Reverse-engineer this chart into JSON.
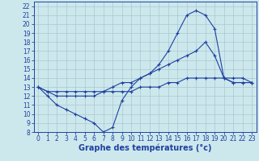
{
  "title": "Graphe des températures (°c)",
  "bg_color": "#cce8ed",
  "grid_color": "#aac8d0",
  "line_color": "#2040a0",
  "x_values": [
    0,
    1,
    2,
    3,
    4,
    5,
    6,
    7,
    8,
    9,
    10,
    11,
    12,
    13,
    14,
    15,
    16,
    17,
    18,
    19,
    20,
    21,
    22,
    23
  ],
  "line1": [
    13,
    12,
    11,
    10.5,
    10,
    9.5,
    9,
    8,
    8.5,
    11.5,
    13,
    14,
    14.5,
    15.5,
    17,
    19,
    21,
    21.5,
    21,
    19.5,
    14,
    13.5,
    13.5,
    13.5
  ],
  "line2": [
    13,
    12.5,
    12,
    12,
    12,
    12,
    12,
    12.5,
    13,
    13.5,
    13.5,
    14,
    14.5,
    15,
    15.5,
    16,
    16.5,
    17,
    18,
    16.5,
    14,
    13.5,
    13.5,
    13.5
  ],
  "line3": [
    13,
    12.5,
    12.5,
    12.5,
    12.5,
    12.5,
    12.5,
    12.5,
    12.5,
    12.5,
    12.5,
    13,
    13,
    13,
    13.5,
    13.5,
    14,
    14,
    14,
    14,
    14,
    14,
    14,
    13.5
  ],
  "xlim": [
    -0.5,
    23.5
  ],
  "ylim": [
    8,
    22.5
  ],
  "yticks": [
    8,
    9,
    10,
    11,
    12,
    13,
    14,
    15,
    16,
    17,
    18,
    19,
    20,
    21,
    22
  ],
  "xticks": [
    0,
    1,
    2,
    3,
    4,
    5,
    6,
    7,
    8,
    9,
    10,
    11,
    12,
    13,
    14,
    15,
    16,
    17,
    18,
    19,
    20,
    21,
    22,
    23
  ],
  "title_fontsize": 7,
  "tick_fontsize": 5.5
}
